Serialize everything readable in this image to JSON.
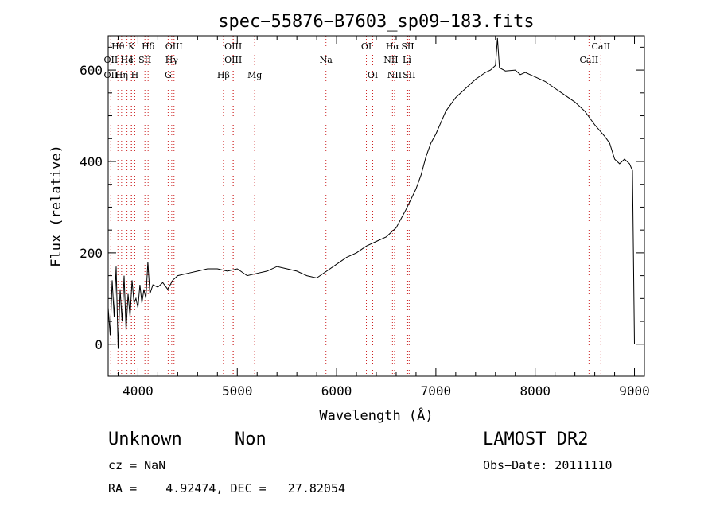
{
  "chart_data": {
    "type": "line",
    "title": "spec−55876−B7603_sp09−183.fits",
    "xlabel": "Wavelength (Å)",
    "ylabel": "Flux (relative)",
    "xlim": [
      3700,
      9100
    ],
    "ylim": [
      -70,
      675
    ],
    "xticks": [
      4000,
      5000,
      6000,
      7000,
      8000,
      9000
    ],
    "yticks": [
      0,
      200,
      400,
      600
    ],
    "grid": false,
    "line_color": "#000000",
    "marker_color": "#cc2222",
    "series": [
      {
        "values": [
          [
            3700,
            80
          ],
          [
            3720,
            20
          ],
          [
            3740,
            140
          ],
          [
            3760,
            60
          ],
          [
            3780,
            170
          ],
          [
            3800,
            -10
          ],
          [
            3820,
            120
          ],
          [
            3840,
            50
          ],
          [
            3860,
            150
          ],
          [
            3880,
            30
          ],
          [
            3900,
            110
          ],
          [
            3920,
            60
          ],
          [
            3940,
            140
          ],
          [
            3960,
            90
          ],
          [
            3980,
            100
          ],
          [
            4000,
            80
          ],
          [
            4020,
            130
          ],
          [
            4040,
            90
          ],
          [
            4060,
            120
          ],
          [
            4080,
            100
          ],
          [
            4100,
            180
          ],
          [
            4120,
            110
          ],
          [
            4150,
            130
          ],
          [
            4200,
            125
          ],
          [
            4250,
            135
          ],
          [
            4300,
            120
          ],
          [
            4350,
            140
          ],
          [
            4400,
            150
          ],
          [
            4500,
            155
          ],
          [
            4600,
            160
          ],
          [
            4700,
            165
          ],
          [
            4800,
            165
          ],
          [
            4900,
            160
          ],
          [
            5000,
            165
          ],
          [
            5100,
            150
          ],
          [
            5200,
            155
          ],
          [
            5300,
            160
          ],
          [
            5400,
            170
          ],
          [
            5500,
            165
          ],
          [
            5600,
            160
          ],
          [
            5700,
            150
          ],
          [
            5800,
            145
          ],
          [
            5900,
            160
          ],
          [
            6000,
            175
          ],
          [
            6100,
            190
          ],
          [
            6200,
            200
          ],
          [
            6300,
            215
          ],
          [
            6400,
            225
          ],
          [
            6500,
            235
          ],
          [
            6600,
            255
          ],
          [
            6700,
            295
          ],
          [
            6800,
            340
          ],
          [
            6850,
            370
          ],
          [
            6900,
            410
          ],
          [
            6950,
            440
          ],
          [
            7000,
            460
          ],
          [
            7050,
            485
          ],
          [
            7100,
            510
          ],
          [
            7150,
            525
          ],
          [
            7200,
            540
          ],
          [
            7300,
            560
          ],
          [
            7400,
            580
          ],
          [
            7500,
            595
          ],
          [
            7550,
            600
          ],
          [
            7600,
            610
          ],
          [
            7620,
            670
          ],
          [
            7640,
            605
          ],
          [
            7700,
            598
          ],
          [
            7800,
            600
          ],
          [
            7850,
            590
          ],
          [
            7900,
            595
          ],
          [
            8000,
            585
          ],
          [
            8100,
            575
          ],
          [
            8200,
            560
          ],
          [
            8300,
            545
          ],
          [
            8400,
            530
          ],
          [
            8500,
            510
          ],
          [
            8600,
            480
          ],
          [
            8700,
            455
          ],
          [
            8750,
            440
          ],
          [
            8800,
            405
          ],
          [
            8850,
            395
          ],
          [
            8900,
            405
          ],
          [
            8950,
            395
          ],
          [
            8980,
            380
          ],
          [
            9000,
            0
          ]
        ]
      }
    ],
    "line_markers": [
      {
        "label": "Hθ",
        "x": 3798,
        "row": 1
      },
      {
        "label": "K",
        "x": 3934,
        "row": 1
      },
      {
        "label": "Hδ",
        "x": 4102,
        "row": 1
      },
      {
        "label": "OIII",
        "x": 4363,
        "row": 1
      },
      {
        "label": "OIII",
        "x": 4959,
        "row": 1
      },
      {
        "label": "OI",
        "x": 6300,
        "row": 1
      },
      {
        "label": "Hα",
        "x": 6563,
        "row": 1
      },
      {
        "label": "SII",
        "x": 6716,
        "row": 1
      },
      {
        "label": "CaII",
        "x": 8662,
        "row": 1
      },
      {
        "label": "OII",
        "x": 3727,
        "row": 2
      },
      {
        "label": "He",
        "x": 3889,
        "row": 2
      },
      {
        "label": "I",
        "x": 3934,
        "row": 2
      },
      {
        "label": "SII",
        "x": 4070,
        "row": 2
      },
      {
        "label": "Hγ",
        "x": 4340,
        "row": 2
      },
      {
        "label": "OIII",
        "x": 4959,
        "row": 2
      },
      {
        "label": "Na",
        "x": 5893,
        "row": 2
      },
      {
        "label": "NII",
        "x": 6548,
        "row": 2
      },
      {
        "label": "Li",
        "x": 6708,
        "row": 2
      },
      {
        "label": "CaII",
        "x": 8542,
        "row": 2
      },
      {
        "label": "OII",
        "x": 3727,
        "row": 3
      },
      {
        "label": "Hη",
        "x": 3835,
        "row": 3
      },
      {
        "label": "H",
        "x": 3968,
        "row": 3
      },
      {
        "label": "G",
        "x": 4304,
        "row": 3
      },
      {
        "label": "Hβ",
        "x": 4861,
        "row": 3
      },
      {
        "label": "Mg",
        "x": 5175,
        "row": 3
      },
      {
        "label": "OI",
        "x": 6364,
        "row": 3
      },
      {
        "label": "NII",
        "x": 6584,
        "row": 3
      },
      {
        "label": "SII",
        "x": 6731,
        "row": 3
      }
    ]
  },
  "info": {
    "object_class": "Unknown",
    "subclass": "Non",
    "survey": "LAMOST DR2",
    "cz_line": "cz = NaN",
    "obs_date_line": "Obs−Date: 20111110",
    "radec_line": "RA =    4.92474, DEC =   27.82054"
  }
}
